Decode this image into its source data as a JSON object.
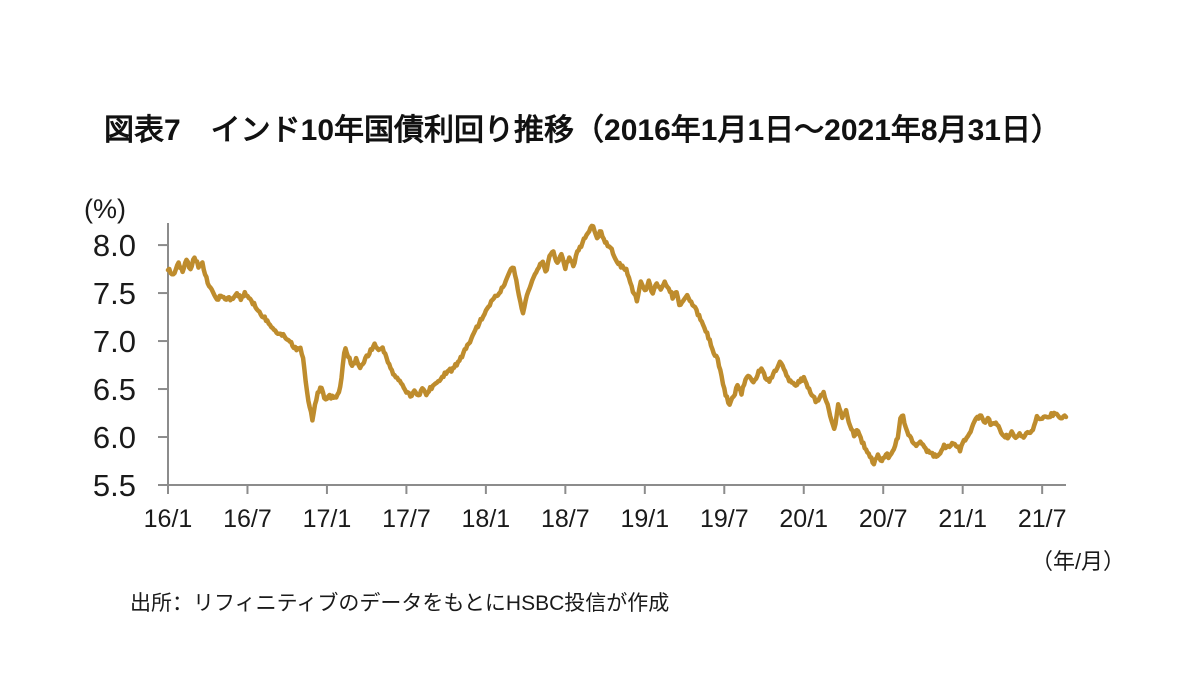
{
  "title": "図表7　インド10年国債利回り推移（2016年1月1日～2021年8月31日）",
  "source": "出所：リフィニティブのデータをもとにHSBC投信が作成",
  "colors": {
    "line": "#BE8C2D",
    "axis": "#8C8C8C",
    "text": "#1A1A1A",
    "background": "#FFFFFF"
  },
  "chart_data": {
    "type": "line",
    "title": "インド10年国債利回り推移",
    "period": "2016年1月1日～2021年8月31日",
    "ylabel": "(%)",
    "xlabel": "（年/月）",
    "grid": false,
    "legend": false,
    "ylim": [
      5.5,
      8.23
    ],
    "y_ticks": [
      "8.0",
      "7.5",
      "7.0",
      "6.5",
      "6.0",
      "5.5"
    ],
    "y_tick_values": [
      8.0,
      7.5,
      7.0,
      6.5,
      6.0,
      5.5
    ],
    "xlim_months": [
      0,
      67.8
    ],
    "x_ticks": [
      {
        "label": "16/1",
        "month": 0
      },
      {
        "label": "16/7",
        "month": 6
      },
      {
        "label": "17/1",
        "month": 12
      },
      {
        "label": "17/7",
        "month": 18
      },
      {
        "label": "18/1",
        "month": 24
      },
      {
        "label": "18/7",
        "month": 30
      },
      {
        "label": "19/1",
        "month": 36
      },
      {
        "label": "19/7",
        "month": 42
      },
      {
        "label": "20/1",
        "month": 48
      },
      {
        "label": "20/7",
        "month": 54
      },
      {
        "label": "21/1",
        "month": 60
      },
      {
        "label": "21/7",
        "month": 66
      }
    ],
    "noise": {
      "seed": 20160101,
      "amplitude": 0.02,
      "step_month": 0.1
    },
    "series": [
      {
        "name": "インド10年国債利回り",
        "unit": "%",
        "color": "#BE8C2D",
        "points_month_yield": [
          [
            0,
            7.75
          ],
          [
            0.4,
            7.7
          ],
          [
            0.8,
            7.8
          ],
          [
            1.1,
            7.74
          ],
          [
            1.4,
            7.83
          ],
          [
            1.7,
            7.76
          ],
          [
            2,
            7.87
          ],
          [
            2.3,
            7.78
          ],
          [
            2.6,
            7.8
          ],
          [
            2.9,
            7.65
          ],
          [
            3.3,
            7.52
          ],
          [
            3.7,
            7.44
          ],
          [
            4.1,
            7.47
          ],
          [
            4.5,
            7.43
          ],
          [
            4.9,
            7.46
          ],
          [
            5.2,
            7.5
          ],
          [
            5.5,
            7.44
          ],
          [
            5.8,
            7.5
          ],
          [
            6.1,
            7.46
          ],
          [
            6.5,
            7.38
          ],
          [
            6.9,
            7.3
          ],
          [
            7.3,
            7.24
          ],
          [
            7.7,
            7.16
          ],
          [
            8.1,
            7.1
          ],
          [
            8.5,
            7.08
          ],
          [
            9,
            7.02
          ],
          [
            9.4,
            6.96
          ],
          [
            9.7,
            6.9
          ],
          [
            10,
            6.94
          ],
          [
            10.2,
            6.82
          ],
          [
            10.45,
            6.5
          ],
          [
            10.7,
            6.3
          ],
          [
            10.9,
            6.19
          ],
          [
            11.1,
            6.32
          ],
          [
            11.35,
            6.48
          ],
          [
            11.6,
            6.52
          ],
          [
            11.85,
            6.38
          ],
          [
            12.1,
            6.44
          ],
          [
            12.5,
            6.4
          ],
          [
            12.9,
            6.45
          ],
          [
            13.1,
            6.6
          ],
          [
            13.35,
            6.93
          ],
          [
            13.6,
            6.85
          ],
          [
            13.9,
            6.74
          ],
          [
            14.2,
            6.81
          ],
          [
            14.5,
            6.72
          ],
          [
            14.8,
            6.79
          ],
          [
            15.2,
            6.88
          ],
          [
            15.6,
            6.97
          ],
          [
            15.9,
            6.9
          ],
          [
            16.2,
            6.94
          ],
          [
            16.5,
            6.82
          ],
          [
            16.9,
            6.68
          ],
          [
            17.3,
            6.6
          ],
          [
            17.7,
            6.54
          ],
          [
            18,
            6.48
          ],
          [
            18.3,
            6.42
          ],
          [
            18.6,
            6.48
          ],
          [
            18.9,
            6.43
          ],
          [
            19.2,
            6.51
          ],
          [
            19.5,
            6.45
          ],
          [
            19.8,
            6.5
          ],
          [
            20.2,
            6.54
          ],
          [
            20.6,
            6.6
          ],
          [
            21,
            6.67
          ],
          [
            21.4,
            6.7
          ],
          [
            21.8,
            6.76
          ],
          [
            22.2,
            6.85
          ],
          [
            22.6,
            6.95
          ],
          [
            23,
            7.05
          ],
          [
            23.4,
            7.16
          ],
          [
            23.8,
            7.26
          ],
          [
            24.2,
            7.36
          ],
          [
            24.6,
            7.45
          ],
          [
            25,
            7.5
          ],
          [
            25.4,
            7.6
          ],
          [
            25.8,
            7.72
          ],
          [
            26.1,
            7.78
          ],
          [
            26.35,
            7.6
          ],
          [
            26.6,
            7.4
          ],
          [
            26.8,
            7.28
          ],
          [
            27.1,
            7.48
          ],
          [
            27.4,
            7.58
          ],
          [
            27.7,
            7.7
          ],
          [
            28,
            7.76
          ],
          [
            28.3,
            7.84
          ],
          [
            28.55,
            7.7
          ],
          [
            28.8,
            7.88
          ],
          [
            29.1,
            7.94
          ],
          [
            29.4,
            7.8
          ],
          [
            29.7,
            7.9
          ],
          [
            30,
            7.77
          ],
          [
            30.3,
            7.88
          ],
          [
            30.6,
            7.78
          ],
          [
            30.9,
            7.93
          ],
          [
            31.2,
            8
          ],
          [
            31.5,
            8.08
          ],
          [
            31.8,
            8.15
          ],
          [
            32.1,
            8.2
          ],
          [
            32.4,
            8.06
          ],
          [
            32.65,
            8.16
          ],
          [
            33,
            8.02
          ],
          [
            33.4,
            7.98
          ],
          [
            33.8,
            7.85
          ],
          [
            34.2,
            7.78
          ],
          [
            34.6,
            7.74
          ],
          [
            35,
            7.56
          ],
          [
            35.4,
            7.43
          ],
          [
            35.7,
            7.62
          ],
          [
            36,
            7.52
          ],
          [
            36.3,
            7.62
          ],
          [
            36.6,
            7.49
          ],
          [
            36.9,
            7.6
          ],
          [
            37.2,
            7.53
          ],
          [
            37.5,
            7.63
          ],
          [
            37.8,
            7.55
          ],
          [
            38.1,
            7.46
          ],
          [
            38.4,
            7.52
          ],
          [
            38.65,
            7.36
          ],
          [
            38.9,
            7.4
          ],
          [
            39.2,
            7.47
          ],
          [
            39.5,
            7.42
          ],
          [
            39.8,
            7.34
          ],
          [
            40.1,
            7.26
          ],
          [
            40.4,
            7.18
          ],
          [
            40.7,
            7.08
          ],
          [
            41,
            6.96
          ],
          [
            41.2,
            6.88
          ],
          [
            41.5,
            6.8
          ],
          [
            41.8,
            6.62
          ],
          [
            42.1,
            6.45
          ],
          [
            42.4,
            6.33
          ],
          [
            42.7,
            6.42
          ],
          [
            43,
            6.54
          ],
          [
            43.3,
            6.46
          ],
          [
            43.6,
            6.6
          ],
          [
            43.9,
            6.64
          ],
          [
            44.2,
            6.56
          ],
          [
            44.5,
            6.65
          ],
          [
            44.8,
            6.72
          ],
          [
            45.1,
            6.62
          ],
          [
            45.4,
            6.57
          ],
          [
            45.7,
            6.65
          ],
          [
            46,
            6.73
          ],
          [
            46.2,
            6.8
          ],
          [
            46.5,
            6.71
          ],
          [
            46.8,
            6.62
          ],
          [
            47.1,
            6.56
          ],
          [
            47.4,
            6.53
          ],
          [
            47.7,
            6.58
          ],
          [
            48,
            6.62
          ],
          [
            48.3,
            6.52
          ],
          [
            48.6,
            6.45
          ],
          [
            48.9,
            6.38
          ],
          [
            49.2,
            6.41
          ],
          [
            49.5,
            6.47
          ],
          [
            49.8,
            6.34
          ],
          [
            50.05,
            6.2
          ],
          [
            50.3,
            6.07
          ],
          [
            50.6,
            6.33
          ],
          [
            50.9,
            6.2
          ],
          [
            51.2,
            6.27
          ],
          [
            51.5,
            6.1
          ],
          [
            51.8,
            6.02
          ],
          [
            52.1,
            6.07
          ],
          [
            52.4,
            5.96
          ],
          [
            52.7,
            5.87
          ],
          [
            53,
            5.79
          ],
          [
            53.3,
            5.73
          ],
          [
            53.6,
            5.8
          ],
          [
            53.9,
            5.75
          ],
          [
            54.2,
            5.82
          ],
          [
            54.5,
            5.79
          ],
          [
            54.8,
            5.89
          ],
          [
            55.1,
            6
          ],
          [
            55.3,
            6.18
          ],
          [
            55.45,
            6.23
          ],
          [
            55.7,
            6.1
          ],
          [
            55.9,
            6.04
          ],
          [
            56.2,
            5.95
          ],
          [
            56.5,
            5.9
          ],
          [
            56.8,
            5.94
          ],
          [
            57.1,
            5.89
          ],
          [
            57.4,
            5.85
          ],
          [
            57.7,
            5.82
          ],
          [
            58,
            5.79
          ],
          [
            58.3,
            5.84
          ],
          [
            58.6,
            5.91
          ],
          [
            58.9,
            5.89
          ],
          [
            59.2,
            5.94
          ],
          [
            59.5,
            5.92
          ],
          [
            59.8,
            5.87
          ],
          [
            60.1,
            5.96
          ],
          [
            60.4,
            6.02
          ],
          [
            60.7,
            6.1
          ],
          [
            61,
            6.18
          ],
          [
            61.35,
            6.23
          ],
          [
            61.7,
            6.15
          ],
          [
            61.9,
            6.19
          ],
          [
            62.2,
            6.12
          ],
          [
            62.5,
            6.15
          ],
          [
            62.8,
            6.07
          ],
          [
            63.1,
            6.02
          ],
          [
            63.4,
            6
          ],
          [
            63.7,
            6.04
          ],
          [
            64,
            5.99
          ],
          [
            64.3,
            6.02
          ],
          [
            64.6,
            6
          ],
          [
            64.9,
            6.04
          ],
          [
            65.1,
            6.05
          ],
          [
            65.35,
            6.1
          ],
          [
            65.6,
            6.2
          ],
          [
            65.9,
            6.17
          ],
          [
            66.2,
            6.23
          ],
          [
            66.5,
            6.21
          ],
          [
            66.8,
            6.24
          ],
          [
            67.1,
            6.25
          ],
          [
            67.35,
            6.19
          ],
          [
            67.6,
            6.23
          ],
          [
            67.8,
            6.22
          ]
        ]
      }
    ]
  }
}
